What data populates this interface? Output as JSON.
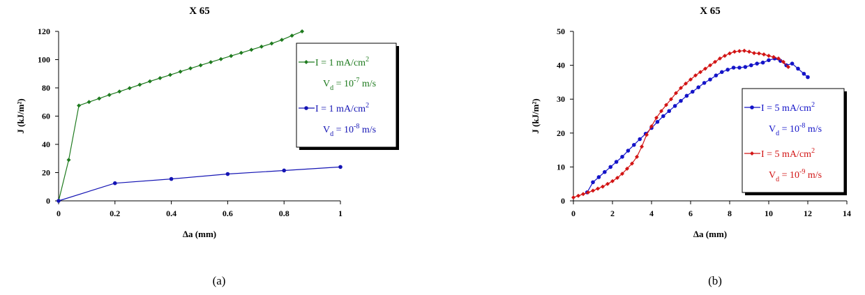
{
  "chart_data": [
    {
      "type": "line",
      "panel_label": "(a)",
      "title": "X 65",
      "xlabel": "Δa (mm)",
      "ylabel": "J (kJ/m²)",
      "xlim": [
        0,
        1
      ],
      "ylim": [
        0,
        120
      ],
      "xticks": [
        0,
        0.2,
        0.4,
        0.6,
        0.8,
        1
      ],
      "xtick_labels": [
        "0",
        "0.2",
        "0.4",
        "0.6",
        "0.8",
        "1"
      ],
      "yticks": [
        0,
        20,
        40,
        60,
        80,
        100,
        120
      ],
      "ytick_labels": [
        "0",
        "20",
        "40",
        "60",
        "80",
        "100",
        "120"
      ],
      "grid": false,
      "legend_placement": "right",
      "series": [
        {
          "legend_line1": "I = 1 mA/cm",
          "legend_line1_sup": "2",
          "legend_line2_main": "V",
          "legend_line2_sub": "d",
          "legend_line2_mid": " = 10",
          "legend_line2_sup": "-7",
          "legend_line2_tail": " m/s",
          "color": "#1e7a1e",
          "marker": "diamond",
          "x": [
            0,
            0.036,
            0.072,
            0.108,
            0.144,
            0.18,
            0.216,
            0.252,
            0.288,
            0.324,
            0.36,
            0.396,
            0.432,
            0.468,
            0.504,
            0.54,
            0.576,
            0.612,
            0.648,
            0.684,
            0.72,
            0.756,
            0.792,
            0.828,
            0.864
          ],
          "y": [
            0,
            29,
            67.5,
            70,
            72.5,
            75,
            77.4,
            79.8,
            82.2,
            84.6,
            86.9,
            89.2,
            91.5,
            93.8,
            96,
            98.2,
            100.4,
            102.6,
            104.8,
            107,
            109.2,
            111.4,
            114,
            117,
            120
          ]
        },
        {
          "legend_line1": "I = 1 mA/cm",
          "legend_line1_sup": "2",
          "legend_line2_main": "V",
          "legend_line2_sub": "d",
          "legend_line2_mid": " = 10",
          "legend_line2_sup": "-8",
          "legend_line2_tail": " m/s",
          "color": "#1414b4",
          "marker": "circle",
          "x": [
            0,
            0.2,
            0.4,
            0.6,
            0.8,
            1.0
          ],
          "y": [
            0,
            12.5,
            15.5,
            19,
            21.5,
            24
          ]
        }
      ]
    },
    {
      "type": "line",
      "panel_label": "(b)",
      "title": "X 65",
      "xlabel": "Δa (mm)",
      "ylabel": "J (kJ/m²)",
      "xlim": [
        0,
        14
      ],
      "ylim": [
        0,
        50
      ],
      "xticks": [
        0,
        2,
        4,
        6,
        8,
        10,
        12,
        14
      ],
      "xtick_labels": [
        "0",
        "2",
        "4",
        "6",
        "8",
        "10",
        "12",
        "14"
      ],
      "yticks": [
        0,
        10,
        20,
        30,
        40,
        50
      ],
      "ytick_labels": [
        "0",
        "10",
        "20",
        "30",
        "40",
        "50"
      ],
      "grid": false,
      "legend_placement": "right",
      "series": [
        {
          "legend_line1": "I = 5 mA/cm",
          "legend_line1_sup": "2",
          "legend_line2_main": "V",
          "legend_line2_sub": "d",
          "legend_line2_mid": " = 10",
          "legend_line2_sup": "-8",
          "legend_line2_tail": " m/s",
          "color": "#1414c8",
          "marker": "circle",
          "x": [
            0.7,
            1.0,
            1.3,
            1.6,
            1.9,
            2.2,
            2.5,
            2.8,
            3.1,
            3.4,
            3.7,
            4.0,
            4.3,
            4.6,
            4.9,
            5.2,
            5.5,
            5.8,
            6.1,
            6.4,
            6.7,
            7.0,
            7.3,
            7.6,
            7.9,
            8.2,
            8.5,
            8.8,
            9.1,
            9.4,
            9.7,
            10.0,
            10.3,
            10.6,
            10.9,
            11.2,
            11.5,
            11.8,
            12.0
          ],
          "y": [
            2.5,
            5.5,
            7.0,
            8.5,
            10.0,
            11.5,
            13.0,
            14.8,
            16.5,
            18.2,
            19.8,
            21.5,
            23.3,
            25.0,
            26.5,
            28.0,
            29.5,
            31.0,
            32.2,
            33.5,
            34.8,
            35.8,
            37.0,
            38.0,
            38.7,
            39.3,
            39.3,
            39.5,
            40.0,
            40.5,
            40.8,
            41.5,
            42.0,
            41.3,
            40.0,
            40.5,
            39.0,
            37.5,
            36.5
          ]
        },
        {
          "legend_line1": "I = 5 mA/cm",
          "legend_line1_sup": "2",
          "legend_line2_main": "V",
          "legend_line2_sub": "d",
          "legend_line2_mid": " = 10",
          "legend_line2_sup": "-9",
          "legend_line2_tail": " m/s",
          "color": "#d21414",
          "marker": "diamond",
          "x": [
            0.0,
            0.25,
            0.5,
            0.75,
            1.0,
            1.25,
            1.5,
            1.75,
            2.0,
            2.25,
            2.5,
            2.75,
            3.0,
            3.25,
            3.5,
            3.75,
            4.0,
            4.25,
            4.5,
            4.75,
            5.0,
            5.25,
            5.5,
            5.75,
            6.0,
            6.25,
            6.5,
            6.75,
            7.0,
            7.25,
            7.5,
            7.75,
            8.0,
            8.25,
            8.5,
            8.75,
            9.0,
            9.25,
            9.5,
            9.75,
            10.0,
            10.25,
            10.5,
            10.75,
            11.0
          ],
          "y": [
            1.0,
            1.5,
            2.0,
            2.5,
            3.0,
            3.6,
            4.2,
            5.0,
            5.8,
            6.8,
            8.0,
            9.5,
            11.0,
            13.0,
            16.0,
            19.5,
            22.0,
            24.5,
            26.5,
            28.3,
            30.0,
            31.8,
            33.3,
            34.6,
            35.8,
            37.0,
            38.0,
            39.0,
            40.0,
            41.0,
            42.0,
            42.8,
            43.5,
            44.0,
            44.2,
            44.3,
            44.0,
            43.6,
            43.5,
            43.2,
            42.8,
            42.4,
            42.0,
            41.0,
            39.5
          ]
        }
      ]
    }
  ]
}
